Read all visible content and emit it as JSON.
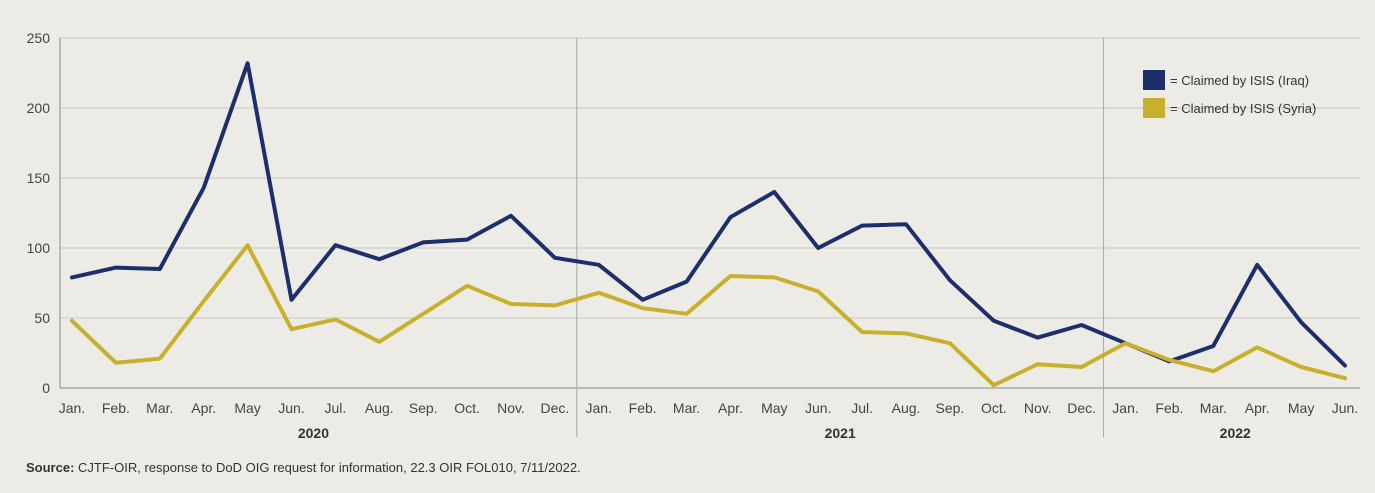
{
  "chart_data": {
    "type": "line",
    "x": [
      "Jan.",
      "Feb.",
      "Mar.",
      "Apr.",
      "May",
      "Jun.",
      "Jul.",
      "Aug.",
      "Sep.",
      "Oct.",
      "Nov.",
      "Dec.",
      "Jan.",
      "Feb.",
      "Mar.",
      "Apr.",
      "May",
      "Jun.",
      "Jul.",
      "Aug.",
      "Sep.",
      "Oct.",
      "Nov.",
      "Dec.",
      "Jan.",
      "Feb.",
      "Mar.",
      "Apr.",
      "May",
      "Jun."
    ],
    "year_groups": [
      {
        "label": "2020",
        "start": 0,
        "end": 11
      },
      {
        "label": "2021",
        "start": 12,
        "end": 23
      },
      {
        "label": "2022",
        "start": 24,
        "end": 29
      }
    ],
    "yticks": [
      0,
      50,
      100,
      150,
      200,
      250
    ],
    "ylim": [
      0,
      250
    ],
    "grid": true,
    "legend_position": "top-right",
    "series": [
      {
        "name": "= Claimed by ISIS (Iraq)",
        "color": "#1c2f6b",
        "values": [
          79,
          86,
          85,
          143,
          232,
          63,
          102,
          92,
          104,
          106,
          123,
          93,
          88,
          63,
          76,
          122,
          140,
          100,
          116,
          117,
          77,
          48,
          36,
          45,
          32,
          19,
          30,
          88,
          47,
          16
        ]
      },
      {
        "name": "= Claimed by ISIS (Syria)",
        "color": "#c9b02c",
        "values": [
          48,
          18,
          21,
          62,
          102,
          42,
          49,
          33,
          53,
          73,
          60,
          59,
          68,
          57,
          53,
          80,
          79,
          69,
          40,
          39,
          32,
          2,
          17,
          15,
          32,
          20,
          12,
          29,
          15,
          7
        ]
      }
    ]
  },
  "source": {
    "label": "Source:",
    "text": " CJTF-OIR, response to DoD OIG request for information, 22.3 OIR FOL010, 7/11/2022."
  }
}
